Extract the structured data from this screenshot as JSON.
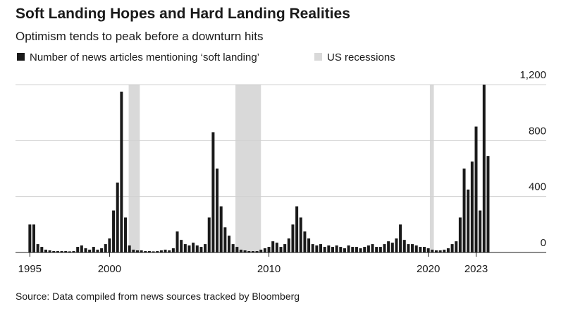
{
  "chart_data": {
    "type": "bar",
    "title": "Soft Landing Hopes and Hard Landing Realities",
    "subtitle": "Optimism tends to peak before a downturn hits",
    "source": "Source: Data compiled from news sources tracked by Bloomberg",
    "series": [
      {
        "name": "Number of news articles mentioning ‘soft landing’",
        "color": "#1a1a1a",
        "x": [
          1995,
          1995.25,
          1995.5,
          1995.75,
          1996,
          1996.25,
          1996.5,
          1996.75,
          1997,
          1997.25,
          1997.5,
          1997.75,
          1998,
          1998.25,
          1998.5,
          1998.75,
          1999,
          1999.25,
          1999.5,
          1999.75,
          2000,
          2000.25,
          2000.5,
          2000.75,
          2001,
          2001.25,
          2001.5,
          2001.75,
          2002,
          2002.25,
          2002.5,
          2002.75,
          2003,
          2003.25,
          2003.5,
          2003.75,
          2004,
          2004.25,
          2004.5,
          2004.75,
          2005,
          2005.25,
          2005.5,
          2005.75,
          2006,
          2006.25,
          2006.5,
          2006.75,
          2007,
          2007.25,
          2007.5,
          2007.75,
          2008,
          2008.25,
          2008.5,
          2008.75,
          2009,
          2009.25,
          2009.5,
          2009.75,
          2010,
          2010.25,
          2010.5,
          2010.75,
          2011,
          2011.25,
          2011.5,
          2011.75,
          2012,
          2012.25,
          2012.5,
          2012.75,
          2013,
          2013.25,
          2013.5,
          2013.75,
          2014,
          2014.25,
          2014.5,
          2014.75,
          2015,
          2015.25,
          2015.5,
          2015.75,
          2016,
          2016.25,
          2016.5,
          2016.75,
          2017,
          2017.25,
          2017.5,
          2017.75,
          2018,
          2018.25,
          2018.5,
          2018.75,
          2019,
          2019.25,
          2019.5,
          2019.75,
          2020,
          2020.25,
          2020.5,
          2020.75,
          2021,
          2021.25,
          2021.5,
          2021.75,
          2022,
          2022.25,
          2022.5,
          2022.75,
          2023,
          2023.25,
          2023.5,
          2023.75
        ],
        "values": [
          200,
          200,
          60,
          40,
          20,
          15,
          10,
          10,
          10,
          10,
          8,
          10,
          40,
          50,
          30,
          20,
          40,
          20,
          30,
          60,
          100,
          300,
          500,
          1150,
          250,
          50,
          20,
          15,
          15,
          10,
          10,
          8,
          10,
          15,
          20,
          15,
          30,
          150,
          90,
          60,
          50,
          70,
          50,
          40,
          60,
          250,
          860,
          600,
          330,
          180,
          120,
          60,
          40,
          20,
          15,
          10,
          10,
          10,
          20,
          30,
          40,
          80,
          70,
          40,
          60,
          100,
          200,
          330,
          250,
          150,
          100,
          60,
          50,
          60,
          40,
          50,
          40,
          50,
          40,
          30,
          50,
          40,
          40,
          30,
          40,
          50,
          60,
          40,
          40,
          60,
          80,
          70,
          100,
          200,
          90,
          60,
          60,
          50,
          40,
          40,
          30,
          20,
          15,
          15,
          20,
          30,
          60,
          80,
          250,
          600,
          450,
          650,
          900,
          300,
          1200,
          690
        ]
      }
    ],
    "recessions": {
      "name": "US recessions",
      "color": "#d9d9d9",
      "spans": [
        [
          2001.2,
          2001.9
        ],
        [
          2007.9,
          2009.5
        ],
        [
          2020.1,
          2020.35
        ]
      ]
    },
    "xlim": [
      1994.1,
      2027.4
    ],
    "xticks": [
      1995,
      2000,
      2010,
      2020,
      2023
    ],
    "ylim": [
      0,
      1200
    ],
    "yticks": [
      0,
      400,
      800,
      {
        "value": 1200,
        "label": "1,200"
      }
    ],
    "grid": true
  }
}
